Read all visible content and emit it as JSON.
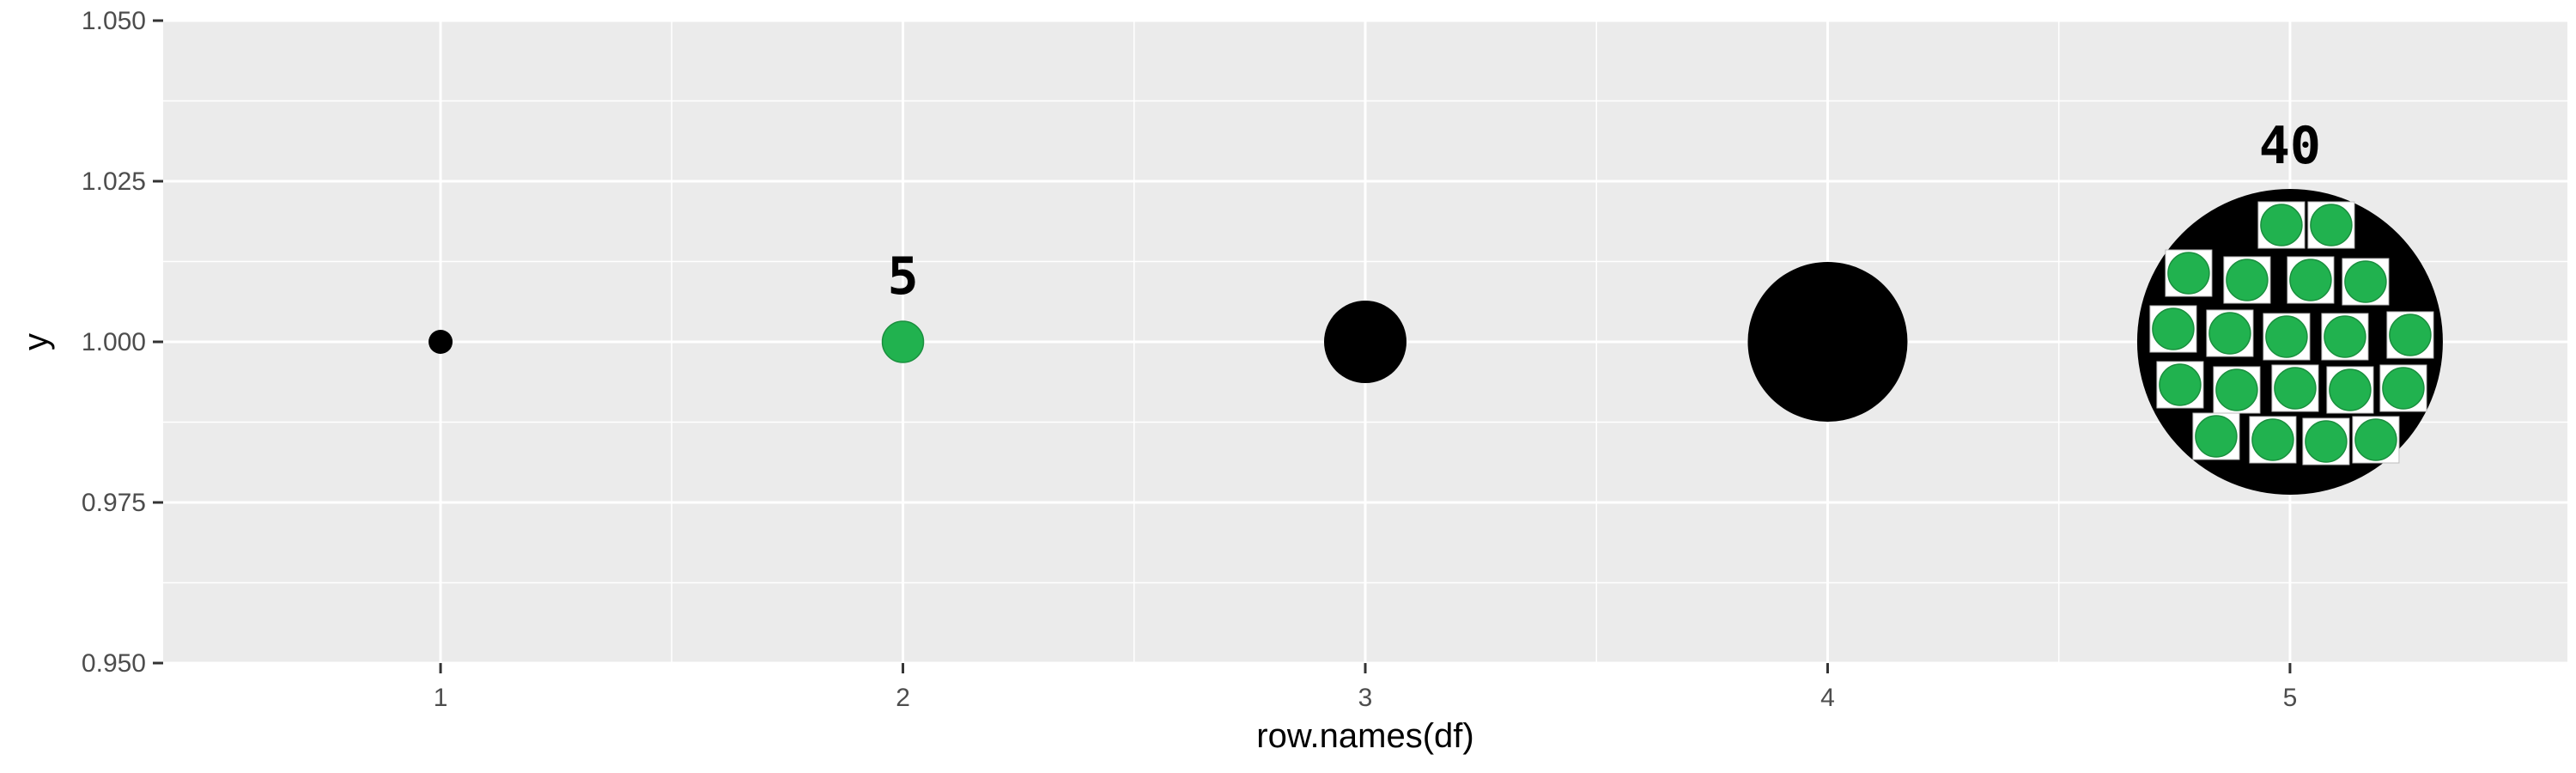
{
  "chart_data": {
    "type": "scatter",
    "xlabel": "row.names(df)",
    "ylabel": "y",
    "xlim": [
      0.4,
      5.6
    ],
    "ylim": [
      0.95,
      1.05
    ],
    "x_ticks": [
      "1",
      "2",
      "3",
      "4",
      "5"
    ],
    "y_ticks": [
      "0.950",
      "0.975",
      "1.000",
      "1.025",
      "1.050"
    ],
    "grid": true,
    "points": [
      {
        "x": 1,
        "y": 1.0,
        "style": "small black point"
      },
      {
        "x": 2,
        "y": 1.0,
        "style": "green point",
        "label": "5"
      },
      {
        "x": 3,
        "y": 1.0,
        "style": "medium black point"
      },
      {
        "x": 4,
        "y": 1.0,
        "style": "large black point"
      },
      {
        "x": 5,
        "y": 1.0,
        "style": "largest black point filled with green dots",
        "label": "40"
      }
    ],
    "colors": {
      "panel": "#ebebeb",
      "grid": "#ffffff",
      "point_black": "#000000",
      "point_green": "#21b24f"
    }
  }
}
